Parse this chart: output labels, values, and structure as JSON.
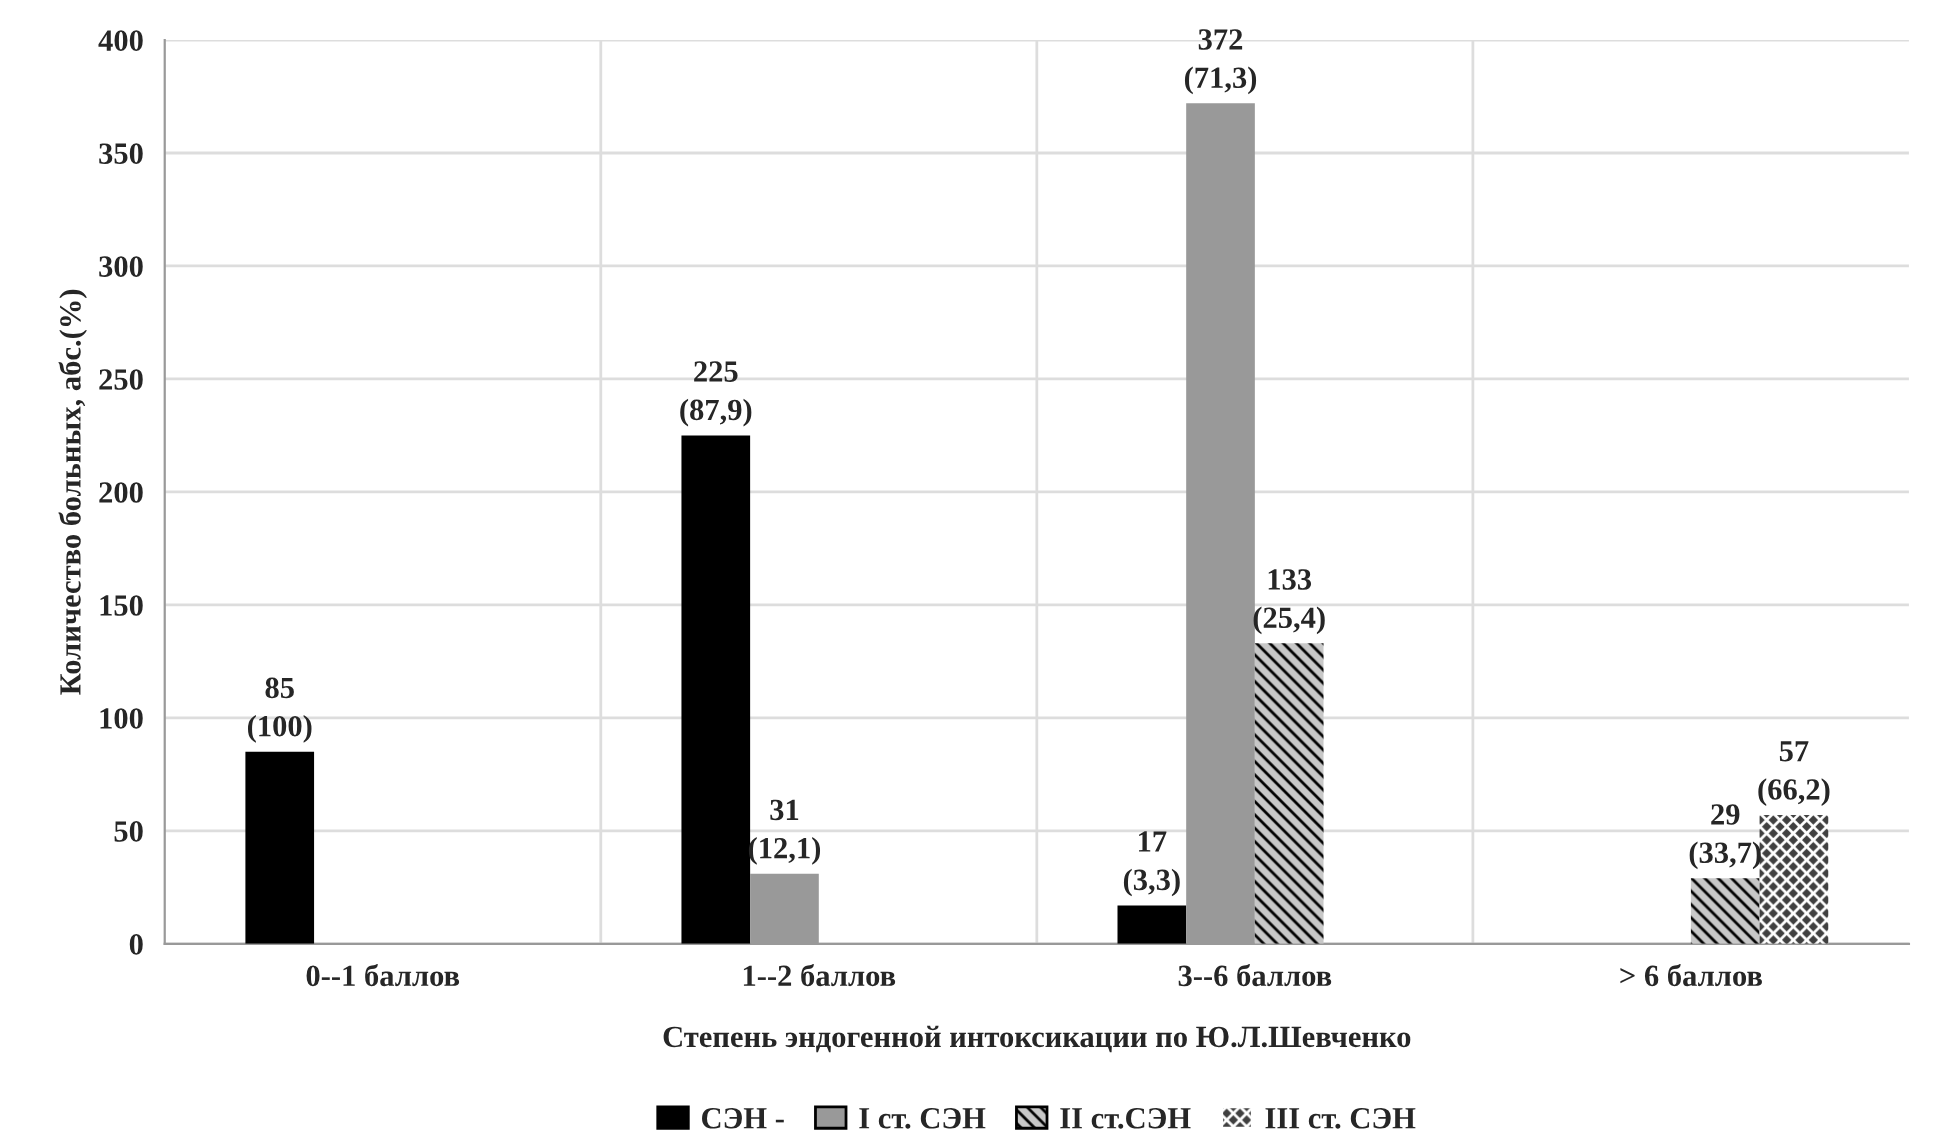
{
  "chart_data": {
    "type": "bar",
    "xlabel": "Степень эндогенной интоксикации по Ю.Л.Шевченко",
    "ylabel": "Количество больных, абс.(%)",
    "categories": [
      "0--1 баллов",
      "1--2 баллов",
      "3--6 баллов",
      "> 6 баллов"
    ],
    "series": [
      {
        "name": "СЭН -",
        "color": "#000000",
        "values": [
          85,
          225,
          17,
          null
        ],
        "value_labels": [
          "85\n(100)",
          "225\n(87,9)",
          "17\n(3,3)",
          null
        ]
      },
      {
        "name": "I ст. СЭН",
        "color": "#999999",
        "values": [
          null,
          31,
          372,
          null
        ],
        "value_labels": [
          null,
          "31\n(12,1)",
          "372\n(71,3)",
          null
        ]
      },
      {
        "name": "II ст.СЭН",
        "color": "#c8c8c8",
        "values": [
          null,
          null,
          133,
          29
        ],
        "value_labels": [
          null,
          null,
          "133\n(25,4)",
          "29\n(33,7)"
        ]
      },
      {
        "name": "III ст. СЭН",
        "color": "#404040",
        "values": [
          null,
          null,
          null,
          57
        ],
        "value_labels": [
          null,
          null,
          null,
          "57\n(66,2)"
        ]
      }
    ],
    "ylim": [
      0,
      400
    ],
    "yticks": [
      0,
      50,
      100,
      150,
      200,
      250,
      300,
      350,
      400
    ],
    "grid": true,
    "legend": "bottom"
  }
}
